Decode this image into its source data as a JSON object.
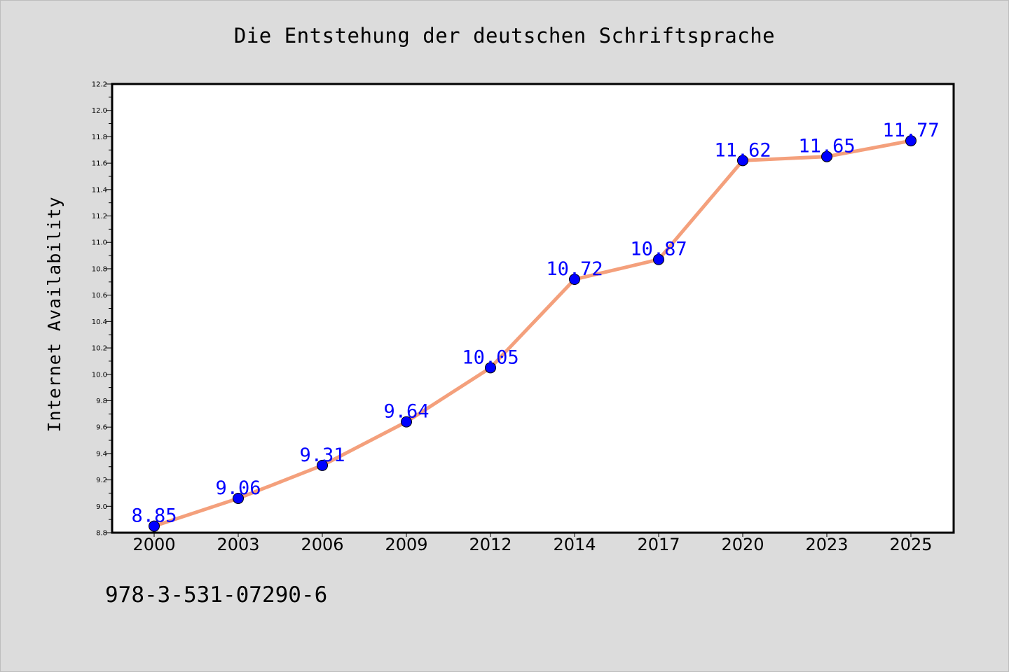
{
  "chart_data": {
    "type": "line",
    "title": "Die Entstehung der deutschen Schriftsprache",
    "xlabel": "",
    "ylabel": "Internet Availability",
    "categories": [
      "2000",
      "2003",
      "2006",
      "2009",
      "2012",
      "2014",
      "2017",
      "2020",
      "2023",
      "2025"
    ],
    "series": [
      {
        "values": [
          8.85,
          9.06,
          9.31,
          9.64,
          10.05,
          10.72,
          10.87,
          11.62,
          11.65,
          11.77
        ],
        "labels": [
          "8.85",
          "9.06",
          "9.31",
          "9.64",
          "10.05",
          "10.72",
          "10.87",
          "11.62",
          "11.65",
          "11.77"
        ],
        "line_color": "#f4a07c",
        "marker_color": "#0000ff",
        "label_color": "#0000ff"
      }
    ],
    "ylim": [
      8.8,
      12.2
    ],
    "yticks": [
      "8.8",
      "9.0",
      "9.2",
      "9.4",
      "9.6",
      "9.8",
      "10.0",
      "10.2",
      "10.4",
      "10.6",
      "10.8",
      "11.0",
      "11.2",
      "11.4",
      "11.6",
      "11.8",
      "12.0",
      "12.2"
    ],
    "grid": false,
    "legend": "none"
  },
  "footer": {
    "isbn": "978-3-531-07290-6"
  }
}
